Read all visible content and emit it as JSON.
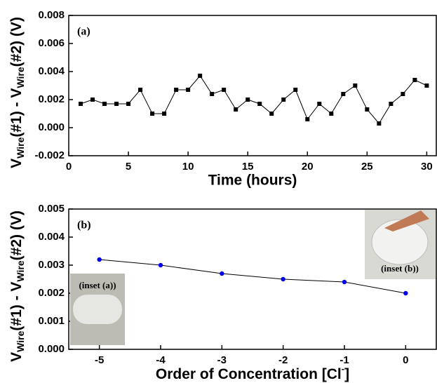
{
  "chart_data": [
    {
      "type": "line",
      "annotation": "(a)",
      "x_label": "Time (hours)",
      "y_label": [
        "V",
        "Wire",
        "(#1) - V",
        "Wire",
        "(#2) (V)"
      ],
      "x": [
        1,
        2,
        3,
        4,
        5,
        6,
        7,
        8,
        9,
        10,
        11,
        12,
        13,
        14,
        15,
        16,
        17,
        18,
        19,
        20,
        21,
        22,
        23,
        24,
        25,
        26,
        27,
        28,
        29,
        30
      ],
      "series": [
        {
          "color": "#000000",
          "marker": "square",
          "values": [
            0.0017,
            0.002,
            0.0017,
            0.0017,
            0.0017,
            0.0027,
            0.001,
            0.001,
            0.0027,
            0.0027,
            0.0037,
            0.0024,
            0.0027,
            0.0013,
            0.002,
            0.0017,
            0.001,
            0.002,
            0.0027,
            0.0006,
            0.0017,
            0.001,
            0.0024,
            0.003,
            0.0013,
            0.0003,
            0.0017,
            0.0024,
            0.0034,
            0.003
          ]
        }
      ],
      "xlim": [
        0,
        30.8
      ],
      "xticks": [
        0,
        5,
        10,
        15,
        20,
        25,
        30
      ],
      "ylim": [
        -0.002,
        0.008
      ],
      "yticks": [
        -0.002,
        {
          "value": 0,
          "label": "0.000"
        },
        0.002,
        0.004,
        0.006,
        0.008
      ]
    },
    {
      "type": "line",
      "annotation": "(b)",
      "x_label": [
        "Order of Concentration [Cl",
        "-",
        "]"
      ],
      "y_label": [
        "V",
        "Wire",
        "(#1) - V",
        "Wire",
        "(#2) (V)"
      ],
      "insets": [
        "(inset (a))",
        "(inset (b))"
      ],
      "x": [
        -5,
        -4,
        -3,
        -2,
        -1,
        0
      ],
      "series": [
        {
          "color": "#0000ee",
          "marker": "circle",
          "values": [
            0.0032,
            0.003,
            0.0027,
            0.0025,
            0.0024,
            0.002
          ]
        }
      ],
      "xlim": [
        -5.5,
        0.5
      ],
      "xticks": [
        -5,
        -4,
        -3,
        -2,
        -1,
        0
      ],
      "ylim": [
        0,
        0.005
      ],
      "yticks": [
        {
          "value": 0,
          "label": "0.000"
        },
        0.001,
        0.002,
        0.003,
        0.004,
        0.005
      ]
    }
  ]
}
